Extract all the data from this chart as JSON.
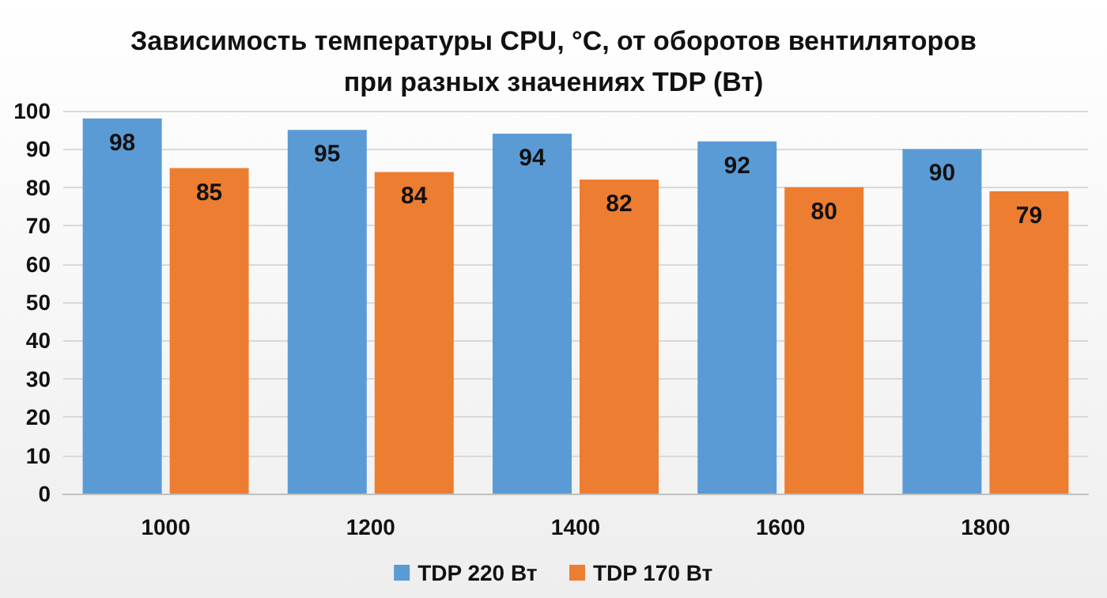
{
  "chart_data": {
    "type": "bar",
    "title": "Зависимость температуры CPU, °C, от оборотов вентиляторов\nпри разных значениях TDP (Вт)",
    "categories": [
      "1000",
      "1200",
      "1400",
      "1600",
      "1800"
    ],
    "series": [
      {
        "name": "TDP 220 Вт",
        "color": "#5b9bd5",
        "values": [
          98,
          95,
          94,
          92,
          90
        ]
      },
      {
        "name": "TDP 170 Вт",
        "color": "#ed7d31",
        "values": [
          85,
          84,
          82,
          80,
          79
        ]
      }
    ],
    "ylim": [
      0,
      100
    ],
    "yticks": [
      0,
      10,
      20,
      30,
      40,
      50,
      60,
      70,
      80,
      90,
      100
    ],
    "grid": "y",
    "legend": "bottom",
    "data_labels": true
  }
}
